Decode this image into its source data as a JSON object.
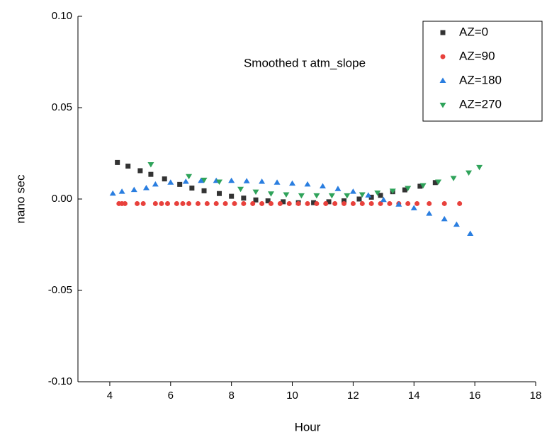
{
  "chart_data": {
    "type": "scatter",
    "annotation": "Smoothed  τ atm_slope",
    "xlabel": "Hour",
    "ylabel": "nano sec",
    "xlim": [
      3,
      18
    ],
    "xticks": [
      4,
      6,
      8,
      10,
      12,
      14,
      16,
      18
    ],
    "ylim": [
      -0.1,
      0.1
    ],
    "yticks": [
      {
        "value": 0.1,
        "label": "0.10"
      },
      0.05,
      {
        "value": 0,
        "label": "0.00"
      },
      {
        "value": -0.05,
        "label": "-0.05"
      },
      {
        "value": -0.1,
        "label": "-0.10"
      }
    ],
    "legend": "upper right",
    "series": [
      {
        "name": "AZ=0",
        "color": "#333333",
        "marker": "square",
        "x": [
          4.25,
          4.6,
          5.0,
          5.35,
          5.8,
          6.3,
          6.7,
          7.1,
          7.6,
          8.0,
          8.4,
          8.8,
          9.2,
          9.7,
          10.2,
          10.7,
          11.2,
          11.7,
          12.2,
          12.6,
          12.9,
          13.3,
          13.7,
          14.2,
          14.7
        ],
        "values": [
          0.02,
          0.018,
          0.0155,
          0.0135,
          0.011,
          0.008,
          0.006,
          0.0045,
          0.003,
          0.0015,
          0.0005,
          -0.0005,
          -0.001,
          -0.0015,
          -0.002,
          -0.002,
          -0.0015,
          -0.001,
          0,
          0.001,
          0.002,
          0.004,
          0.005,
          0.007,
          0.009
        ]
      },
      {
        "name": "AZ=90",
        "color": "#e8413c",
        "marker": "circle",
        "x": [
          4.3,
          4.4,
          4.5,
          4.9,
          5.1,
          5.5,
          5.7,
          5.9,
          6.2,
          6.4,
          6.6,
          6.9,
          7.2,
          7.5,
          7.8,
          8.1,
          8.4,
          8.7,
          9.0,
          9.3,
          9.6,
          9.9,
          10.2,
          10.5,
          10.8,
          11.1,
          11.4,
          11.7,
          12.0,
          12.3,
          12.6,
          12.9,
          13.2,
          13.5,
          13.8,
          14.1,
          14.5,
          15.0,
          15.5
        ],
        "values": [
          -0.0025,
          -0.0025,
          -0.0025,
          -0.0025,
          -0.0025,
          -0.0025,
          -0.0025,
          -0.0025,
          -0.0025,
          -0.0025,
          -0.0025,
          -0.0025,
          -0.0025,
          -0.0025,
          -0.0025,
          -0.0025,
          -0.0025,
          -0.0025,
          -0.0025,
          -0.0025,
          -0.0025,
          -0.0025,
          -0.0025,
          -0.0025,
          -0.0025,
          -0.0025,
          -0.0025,
          -0.0025,
          -0.0025,
          -0.0025,
          -0.0025,
          -0.0025,
          -0.0025,
          -0.0025,
          -0.0025,
          -0.0025,
          -0.0025,
          -0.0025,
          -0.0025
        ]
      },
      {
        "name": "AZ=180",
        "color": "#2a7ee0",
        "marker": "triangle-up",
        "x": [
          4.1,
          4.4,
          4.8,
          5.2,
          5.5,
          6.0,
          6.5,
          7.0,
          7.5,
          8.0,
          8.5,
          9.0,
          9.5,
          10.0,
          10.5,
          11.0,
          11.5,
          12.0,
          12.5,
          13.0,
          13.5,
          14.0,
          14.5,
          15.0,
          15.4,
          15.85
        ],
        "values": [
          0.003,
          0.004,
          0.005,
          0.006,
          0.008,
          0.009,
          0.0095,
          0.01,
          0.01,
          0.01,
          0.0098,
          0.0095,
          0.009,
          0.0085,
          0.008,
          0.007,
          0.0055,
          0.004,
          0.002,
          -0.0005,
          -0.003,
          -0.005,
          -0.008,
          -0.011,
          -0.014,
          -0.019
        ]
      },
      {
        "name": "AZ=270",
        "color": "#2fa35a",
        "marker": "triangle-down",
        "x": [
          5.35,
          6.6,
          7.1,
          7.6,
          8.3,
          8.8,
          9.3,
          9.8,
          10.3,
          10.8,
          11.3,
          11.8,
          12.3,
          12.8,
          13.3,
          13.8,
          14.3,
          14.8,
          15.3,
          15.8,
          16.15
        ],
        "values": [
          0.019,
          0.0125,
          0.0105,
          0.0095,
          0.0055,
          0.004,
          0.003,
          0.0025,
          0.002,
          0.002,
          0.002,
          0.002,
          0.0025,
          0.0035,
          0.0045,
          0.006,
          0.0075,
          0.0095,
          0.0115,
          0.0145,
          0.0175
        ]
      }
    ]
  }
}
